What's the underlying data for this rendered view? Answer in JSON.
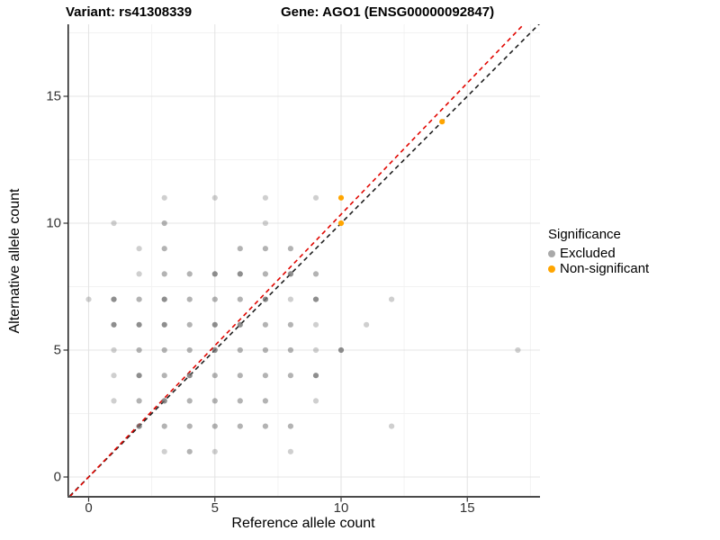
{
  "titles": {
    "variant": "Variant: rs41308339",
    "gene": "Gene: AGO1 (ENSG00000092847)"
  },
  "legend": {
    "title": "Significance",
    "items": [
      {
        "label": "Excluded",
        "color": "#a9a9a9"
      },
      {
        "label": "Non-significant",
        "color": "#FFA500"
      }
    ]
  },
  "chart_data": {
    "type": "scatter",
    "title": "Variant: rs41308339 | Gene: AGO1 (ENSG00000092847)",
    "xlabel": "Reference allele count",
    "ylabel": "Alternative allele count",
    "xlim": [
      -0.85,
      17.85
    ],
    "ylim": [
      -0.85,
      17.85
    ],
    "x_ticks": [
      0,
      5,
      10,
      15
    ],
    "y_ticks": [
      0,
      5,
      10,
      15
    ],
    "grid": {
      "major": [
        0,
        5,
        10,
        15
      ],
      "minor": [
        2.5,
        7.5,
        12.5,
        17.5
      ],
      "on": true
    },
    "legend_position": "right",
    "series": [
      {
        "name": "Excluded",
        "color": "#6e6e6e",
        "points_xyw": [
          [
            3,
            11,
            1
          ],
          [
            5,
            11,
            1
          ],
          [
            7,
            11,
            1
          ],
          [
            9,
            11,
            1
          ],
          [
            1,
            10,
            1
          ],
          [
            3,
            10,
            2
          ],
          [
            7,
            10,
            1
          ],
          [
            2,
            9,
            1
          ],
          [
            3,
            9,
            2
          ],
          [
            6,
            9,
            2
          ],
          [
            7,
            9,
            2
          ],
          [
            8,
            9,
            2
          ],
          [
            2,
            8,
            1
          ],
          [
            3,
            8,
            2
          ],
          [
            4,
            8,
            2
          ],
          [
            5,
            8,
            3
          ],
          [
            6,
            8,
            3
          ],
          [
            7,
            8,
            2
          ],
          [
            8,
            8,
            3
          ],
          [
            9,
            8,
            2
          ],
          [
            0,
            7,
            1
          ],
          [
            1,
            7,
            3
          ],
          [
            2,
            7,
            2
          ],
          [
            3,
            7,
            3
          ],
          [
            4,
            7,
            2
          ],
          [
            5,
            7,
            2
          ],
          [
            6,
            7,
            2
          ],
          [
            7,
            7,
            3
          ],
          [
            8,
            7,
            1
          ],
          [
            9,
            7,
            3
          ],
          [
            12,
            7,
            1
          ],
          [
            1,
            6,
            3
          ],
          [
            2,
            6,
            3
          ],
          [
            3,
            6,
            3
          ],
          [
            4,
            6,
            2
          ],
          [
            5,
            6,
            3
          ],
          [
            6,
            6,
            3
          ],
          [
            7,
            6,
            2
          ],
          [
            8,
            6,
            2
          ],
          [
            9,
            6,
            1
          ],
          [
            11,
            6,
            1
          ],
          [
            1,
            5,
            1
          ],
          [
            2,
            5,
            2
          ],
          [
            3,
            5,
            2
          ],
          [
            4,
            5,
            2
          ],
          [
            5,
            5,
            3
          ],
          [
            6,
            5,
            2
          ],
          [
            7,
            5,
            2
          ],
          [
            8,
            5,
            2
          ],
          [
            9,
            5,
            1
          ],
          [
            10,
            5,
            3
          ],
          [
            17,
            5,
            1
          ],
          [
            1,
            4,
            1
          ],
          [
            2,
            4,
            3
          ],
          [
            3,
            4,
            2
          ],
          [
            4,
            4,
            3
          ],
          [
            5,
            4,
            2
          ],
          [
            6,
            4,
            2
          ],
          [
            7,
            4,
            2
          ],
          [
            8,
            4,
            2
          ],
          [
            9,
            4,
            3
          ],
          [
            1,
            3,
            1
          ],
          [
            2,
            3,
            2
          ],
          [
            3,
            3,
            3
          ],
          [
            4,
            3,
            2
          ],
          [
            5,
            3,
            2
          ],
          [
            6,
            3,
            2
          ],
          [
            7,
            3,
            2
          ],
          [
            9,
            3,
            1
          ],
          [
            2,
            2,
            3
          ],
          [
            3,
            2,
            2
          ],
          [
            4,
            2,
            2
          ],
          [
            5,
            2,
            2
          ],
          [
            6,
            2,
            2
          ],
          [
            7,
            2,
            2
          ],
          [
            8,
            2,
            2
          ],
          [
            12,
            2,
            1
          ],
          [
            3,
            1,
            1
          ],
          [
            4,
            1,
            2
          ],
          [
            5,
            1,
            1
          ],
          [
            8,
            1,
            1
          ]
        ]
      },
      {
        "name": "Non-significant",
        "color": "#FFA500",
        "points_xyw": [
          [
            10,
            10,
            3
          ],
          [
            10,
            11,
            3
          ],
          [
            14,
            14,
            3
          ]
        ]
      }
    ],
    "lines": [
      {
        "name": "identity-line",
        "slope": 1.0,
        "intercept": 0,
        "color": "#1f1f1f",
        "style": "dashed"
      },
      {
        "name": "fitted-ratio-line",
        "slope": 1.035,
        "intercept": 0,
        "color": "#e10600",
        "style": "dashed"
      }
    ]
  }
}
